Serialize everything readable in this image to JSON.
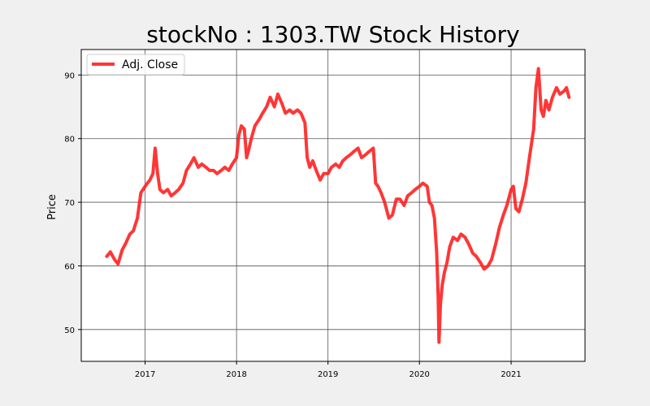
{
  "chart_data": {
    "type": "line",
    "title": "stockNo : 1303.TW Stock History",
    "xlabel": "",
    "ylabel": "Price",
    "xlim": [
      "2016-04-21",
      "2021-10-23"
    ],
    "ylim": [
      45,
      94
    ],
    "grid": true,
    "legend_position": "top-left",
    "x_ticks": [
      "2017",
      "2018",
      "2019",
      "2020",
      "2021"
    ],
    "y_ticks": [
      50,
      60,
      70,
      80,
      90
    ],
    "line_color": "#ff2020",
    "series": [
      {
        "name": "Adj. Close",
        "x": [
          "2016-08-01",
          "2016-08-15",
          "2016-09-01",
          "2016-09-15",
          "2016-10-01",
          "2016-10-15",
          "2016-11-01",
          "2016-11-15",
          "2016-12-01",
          "2016-12-15",
          "2017-01-01",
          "2017-01-10",
          "2017-01-20",
          "2017-02-01",
          "2017-02-10",
          "2017-02-20",
          "2017-03-01",
          "2017-03-15",
          "2017-04-01",
          "2017-04-15",
          "2017-05-01",
          "2017-05-15",
          "2017-06-01",
          "2017-06-15",
          "2017-07-01",
          "2017-07-15",
          "2017-08-01",
          "2017-08-15",
          "2017-09-01",
          "2017-09-15",
          "2017-10-01",
          "2017-10-15",
          "2017-11-01",
          "2017-11-15",
          "2017-12-01",
          "2017-12-15",
          "2018-01-01",
          "2018-01-10",
          "2018-01-20",
          "2018-02-01",
          "2018-02-10",
          "2018-02-20",
          "2018-03-01",
          "2018-03-15",
          "2018-04-01",
          "2018-04-15",
          "2018-05-01",
          "2018-05-15",
          "2018-06-01",
          "2018-06-15",
          "2018-07-01",
          "2018-07-15",
          "2018-08-01",
          "2018-08-15",
          "2018-09-01",
          "2018-09-15",
          "2018-10-01",
          "2018-10-10",
          "2018-10-20",
          "2018-11-01",
          "2018-11-15",
          "2018-12-01",
          "2018-12-15",
          "2019-01-01",
          "2019-01-15",
          "2019-02-01",
          "2019-02-15",
          "2019-03-01",
          "2019-03-15",
          "2019-04-01",
          "2019-04-15",
          "2019-05-01",
          "2019-05-15",
          "2019-06-01",
          "2019-06-15",
          "2019-07-01",
          "2019-07-10",
          "2019-07-20",
          "2019-08-01",
          "2019-08-15",
          "2019-09-01",
          "2019-09-15",
          "2019-10-01",
          "2019-10-15",
          "2019-11-01",
          "2019-11-15",
          "2019-12-01",
          "2019-12-15",
          "2020-01-01",
          "2020-01-15",
          "2020-02-01",
          "2020-02-10",
          "2020-02-20",
          "2020-03-01",
          "2020-03-10",
          "2020-03-16",
          "2020-03-19",
          "2020-03-25",
          "2020-04-01",
          "2020-04-10",
          "2020-04-20",
          "2020-05-01",
          "2020-05-15",
          "2020-06-01",
          "2020-06-15",
          "2020-07-01",
          "2020-07-15",
          "2020-08-01",
          "2020-08-15",
          "2020-09-01",
          "2020-09-15",
          "2020-10-01",
          "2020-10-15",
          "2020-11-01",
          "2020-11-15",
          "2020-12-01",
          "2020-12-15",
          "2021-01-01",
          "2021-01-10",
          "2021-01-20",
          "2021-02-01",
          "2021-02-15",
          "2021-03-01",
          "2021-03-15",
          "2021-04-01",
          "2021-04-10",
          "2021-04-20",
          "2021-05-01",
          "2021-05-10",
          "2021-05-20",
          "2021-06-01",
          "2021-06-15",
          "2021-07-01",
          "2021-07-15",
          "2021-08-01",
          "2021-08-10",
          "2021-08-20"
        ],
        "y": [
          61.5,
          62.2,
          61.0,
          60.3,
          62.5,
          63.5,
          65.0,
          65.5,
          67.5,
          71.5,
          72.5,
          73.0,
          73.5,
          74.5,
          78.5,
          74.5,
          72.0,
          71.5,
          72.0,
          71.0,
          71.5,
          72.0,
          73.0,
          75.0,
          76.0,
          77.0,
          75.5,
          76.0,
          75.5,
          75.0,
          75.0,
          74.5,
          75.0,
          75.5,
          75.0,
          76.0,
          77.0,
          80.5,
          82.0,
          81.5,
          77.0,
          78.5,
          80.0,
          82.0,
          83.0,
          84.0,
          85.0,
          86.5,
          85.0,
          87.0,
          85.5,
          84.0,
          84.5,
          84.0,
          84.5,
          84.0,
          82.5,
          77.0,
          75.5,
          76.5,
          75.0,
          73.5,
          74.5,
          74.5,
          75.5,
          76.0,
          75.5,
          76.5,
          77.0,
          77.5,
          78.0,
          78.5,
          77.0,
          77.5,
          78.0,
          78.5,
          73.0,
          72.5,
          71.5,
          70.0,
          67.5,
          68.0,
          70.5,
          70.5,
          69.5,
          71.0,
          71.5,
          72.0,
          72.5,
          73.0,
          72.5,
          70.0,
          69.5,
          67.5,
          62.0,
          55.0,
          48.0,
          54.0,
          57.0,
          59.0,
          60.5,
          63.0,
          64.5,
          64.0,
          65.0,
          64.5,
          63.5,
          62.0,
          61.5,
          60.5,
          59.5,
          60.0,
          61.0,
          63.5,
          66.0,
          68.0,
          69.5,
          72.0,
          72.5,
          69.0,
          68.5,
          70.5,
          73.0,
          77.0,
          81.5,
          88.0,
          91.0,
          84.5,
          83.5,
          86.0,
          84.5,
          86.5,
          88.0,
          87.0,
          87.5,
          88.0,
          86.5
        ]
      }
    ]
  }
}
